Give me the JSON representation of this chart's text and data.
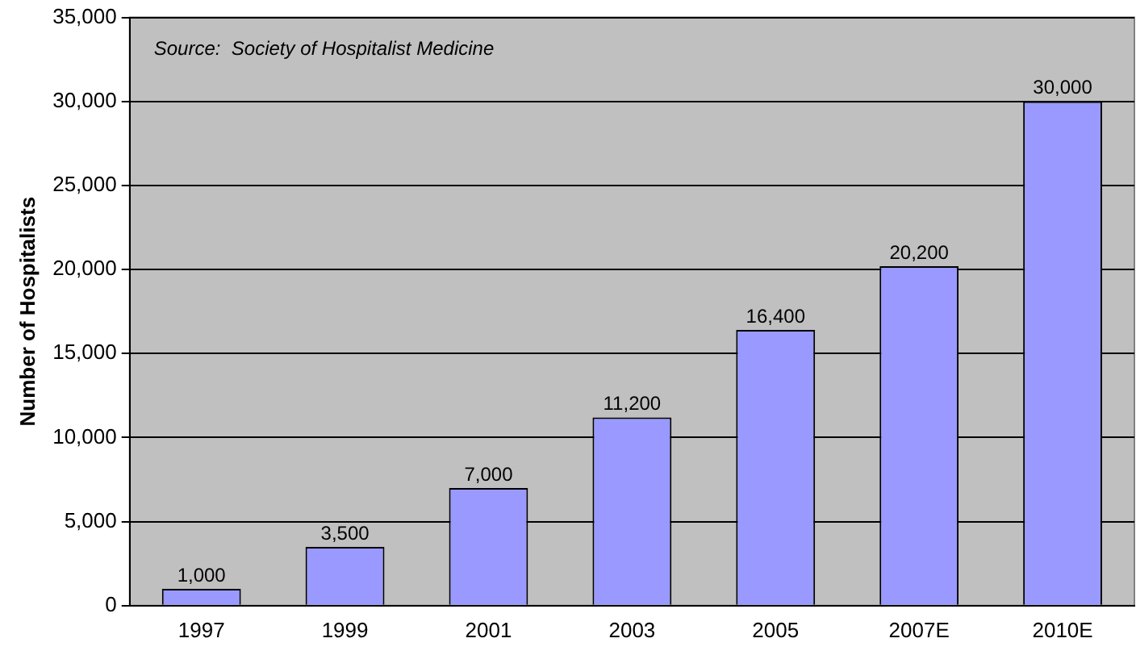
{
  "chart_data": {
    "type": "bar",
    "ylabel": "Number of Hospitalists",
    "categories": [
      "1997",
      "1999",
      "2001",
      "2003",
      "2005",
      "2007E",
      "2010E"
    ],
    "values": [
      1000,
      3500,
      7000,
      11200,
      16400,
      20200,
      30000
    ],
    "color": "#9999ff",
    "ylim": [
      0,
      35000
    ],
    "yticks": [
      {
        "value": 0,
        "label": "0"
      },
      {
        "value": 5000,
        "label": "5,000"
      },
      {
        "value": 10000,
        "label": "10,000"
      },
      {
        "value": 15000,
        "label": "15,000"
      },
      {
        "value": 20000,
        "label": "20,000"
      },
      {
        "value": 25000,
        "label": "25,000"
      },
      {
        "value": 30000,
        "label": "30,000"
      },
      {
        "value": 35000,
        "label": "35,000"
      }
    ],
    "grid": "y",
    "value_labels": [
      "1,000",
      "3,500",
      "7,000",
      "11,200",
      "16,400",
      "20,200",
      "30,000"
    ],
    "annotations": [
      "Source:  Society of Hospitalist Medicine"
    ]
  }
}
